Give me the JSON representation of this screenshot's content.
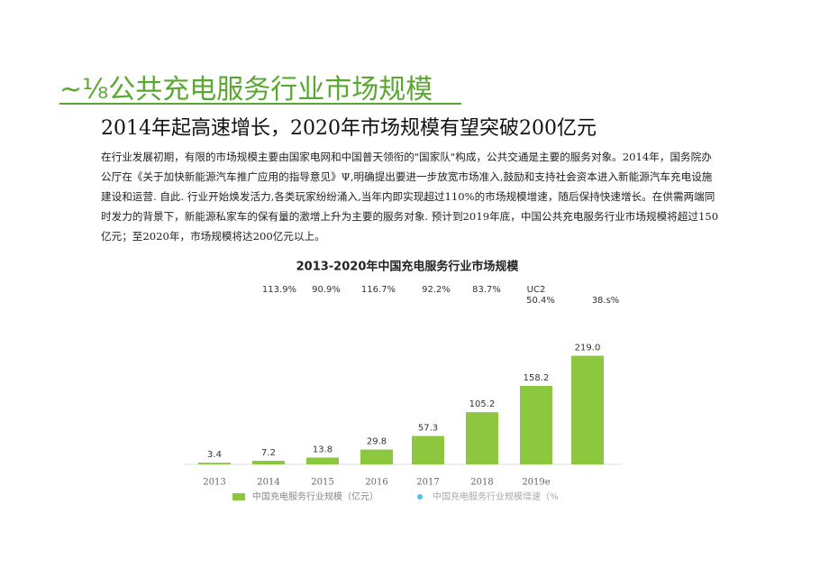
{
  "header": {
    "title": "~⅛公共充电服务行业市场规模",
    "subtitle": "2014年起高速增长，2020年市场规模有望突破200亿元"
  },
  "paragraph": [
    "在行业发展初期，有限的市场规模主要由国家电网和中国普天领衔的\"国家队\"构成，公共交通是主要的服务对象。2014年，国务院办",
    "公厅在《关于加快新能源汽车推广应用的指导意见》Ψ,明确提出要进一步放宽市场准入,鼓励和支持社会资本进入新能源汽车充电设施",
    "建设和运营. 自此. 行业开始焕发活力,各类玩家纷纷涌入,当年内即实现超过110%的市场规模增速，随后保持快速增长。在供需两端同",
    "时发力的背景下，新能源私家车的保有量的激增上升为主要的服务对象. 预计到2019年底，中国公共充电服务行业市场规模将超过150",
    "亿元；至2020年，市场规模将达200亿元以上。"
  ],
  "chart_data": {
    "type": "bar",
    "title": "2013-2020年中国充电服务行业市场规模",
    "categories": [
      "2013",
      "2014",
      "2015",
      "2016",
      "2017",
      "2018",
      "2019e",
      null
    ],
    "series": [
      {
        "name": "中国充电服务行业规模（亿元）",
        "color": "#8dc63f",
        "values": [
          3.4,
          7.2,
          13.8,
          29.8,
          57.3,
          105.2,
          158.2,
          219.0
        ],
        "value_labels": [
          "3.4",
          "7.2",
          "13.8",
          "29.8",
          "57.3",
          "105.2",
          "158.2",
          "219.0"
        ]
      }
    ],
    "legend": [
      "中国充电服务行业规模（亿元）",
      "中国充电服务行业规模增速（%"
    ],
    "annotations": [
      "113.9%",
      "90.9%",
      "116.7%",
      "92.2%",
      "83.7%",
      "UC2",
      "50.4%",
      "38.s%"
    ]
  }
}
